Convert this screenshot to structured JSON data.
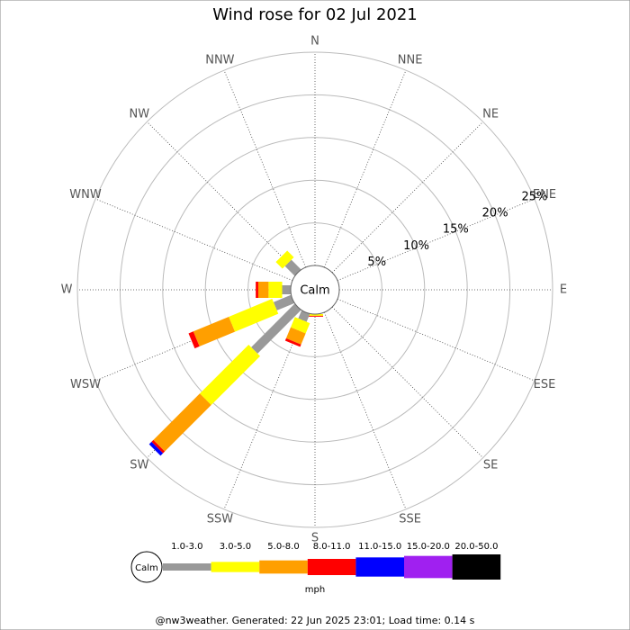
{
  "chart_data": {
    "type": "windrose",
    "title": "Wind rose for 02 Jul 2021",
    "directions": [
      "N",
      "NNE",
      "NE",
      "ENE",
      "E",
      "ESE",
      "SE",
      "SSE",
      "S",
      "SSW",
      "SW",
      "WSW",
      "W",
      "WNW",
      "NW",
      "NNW"
    ],
    "rlim": [
      0,
      25
    ],
    "rticks": [
      {
        "value": 5,
        "label": "5%"
      },
      {
        "value": 10,
        "label": "10%"
      },
      {
        "value": 15,
        "label": "15%"
      },
      {
        "value": 20,
        "label": "20%"
      },
      {
        "value": 25,
        "label": "25%"
      }
    ],
    "calm_label": "Calm",
    "unit_label": "mph",
    "series": [
      {
        "name": "1.0-3.0",
        "color": "#999999",
        "values": [
          0,
          0,
          0,
          0,
          0,
          0,
          0,
          0,
          0,
          1.0,
          7.2,
          2.2,
          1.0,
          0,
          1.6,
          0
        ]
      },
      {
        "name": "3.0-5.0",
        "color": "#ffff00",
        "values": [
          0,
          0,
          0,
          0,
          0,
          0,
          0,
          0,
          0.2,
          1.3,
          8.1,
          5.5,
          1.6,
          0,
          1.1,
          0
        ]
      },
      {
        "name": "5.0-8.0",
        "color": "#ff9f00",
        "values": [
          0,
          0,
          0,
          0,
          0,
          0,
          0,
          0,
          0,
          1.4,
          7.7,
          4.5,
          1.2,
          0,
          0,
          0
        ]
      },
      {
        "name": "8.0-11.0",
        "color": "#ff0000",
        "values": [
          0,
          0,
          0,
          0,
          0,
          0,
          0,
          0,
          0.1,
          0.3,
          0.3,
          0.6,
          0.3,
          0,
          0,
          0
        ]
      },
      {
        "name": "11.0-15.0",
        "color": "#0000ff",
        "values": [
          0,
          0,
          0,
          0,
          0,
          0,
          0,
          0,
          0,
          0,
          0.4,
          0,
          0,
          0,
          0,
          0
        ]
      },
      {
        "name": "15.0-20.0",
        "color": "#a020f0",
        "values": [
          0,
          0,
          0,
          0,
          0,
          0,
          0,
          0,
          0,
          0,
          0,
          0,
          0,
          0,
          0,
          0
        ]
      },
      {
        "name": "20.0-50.0",
        "color": "#000000",
        "values": [
          0,
          0,
          0,
          0,
          0,
          0,
          0,
          0,
          0,
          0,
          0,
          0,
          0,
          0,
          0,
          0
        ]
      }
    ],
    "footer": "@nw3weather. Generated: 22 Jun 2025 23:01; Load time: 0.14 s"
  }
}
